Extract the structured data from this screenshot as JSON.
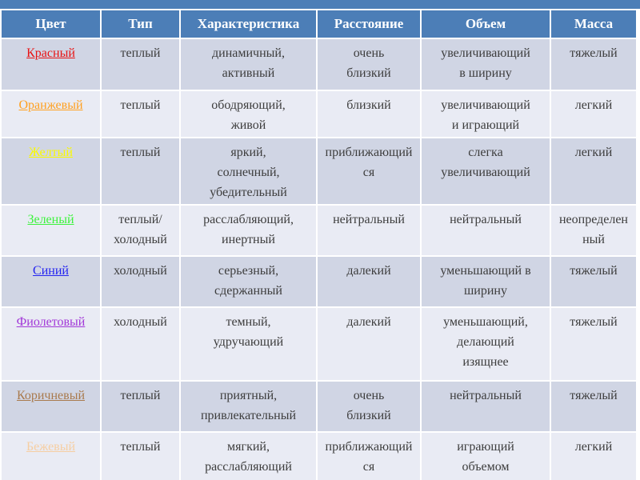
{
  "page": {
    "background_color": "#ffffff",
    "accent_bar_color": "#4c7eb7"
  },
  "table": {
    "header": {
      "bg_color": "#4c7eb7",
      "text_color": "#ffffff",
      "columns": [
        "Цвет",
        "Тип",
        "Характеристика",
        "Расстояние",
        "Объем",
        "Масса"
      ]
    },
    "band_colors": {
      "odd_row": "#d0d5e4",
      "even_row": "#e9ebf4"
    },
    "body_text_color": "#3d3d3d",
    "rows": [
      {
        "color_name": "Красный",
        "color_hex": "#e81313",
        "type": "теплый",
        "characteristic": "динамичный,\nактивный",
        "distance": "очень\nблизкий",
        "volume": "увеличивающий\nв ширину",
        "mass": "тяжелый"
      },
      {
        "color_name": "Оранжевый",
        "color_hex": "#ffa020",
        "type": "теплый",
        "characteristic": "ободряющий,\nживой",
        "distance": "близкий",
        "volume": "увеличивающий\nи играющий",
        "mass": "легкий"
      },
      {
        "color_name": "Желтый",
        "color_hex": "#fafa00",
        "type": "теплый",
        "characteristic": "яркий,\nсолнечный,\nубедительный",
        "distance": "приближающийся",
        "volume": "слегка\nувеличивающий",
        "mass": "легкий"
      },
      {
        "color_name": "Зеленый",
        "color_hex": "#3df33d",
        "type": "теплый/\nхолодный",
        "characteristic": "расслабляющий,\nинертный",
        "distance": "нейтральный",
        "volume": "нейтральный",
        "mass": "неопределенный"
      },
      {
        "color_name": "Синий",
        "color_hex": "#2424f0",
        "type": "холодный",
        "characteristic": "серьезный,\nсдержанный",
        "distance": "далекий",
        "volume": "уменьшающий в\nширину",
        "mass": "тяжелый"
      },
      {
        "color_name": "Фиолетовый",
        "color_hex": "#a238d8",
        "type": "холодный",
        "characteristic": "темный,\nудручающий",
        "distance": "далекий",
        "volume": "уменьшающий,\nделающий\nизящнее",
        "mass": "тяжелый"
      },
      {
        "color_name": "Коричневый",
        "color_hex": "#a97a4d",
        "type": "теплый",
        "characteristic": "приятный,\nпривлекательный",
        "distance": "очень\nблизкий",
        "volume": "нейтральный",
        "mass": "тяжелый"
      },
      {
        "color_name": "Бежевый",
        "color_hex": "#f6cea2",
        "type": "теплый",
        "characteristic": "мягкий,\nрасслабляющий",
        "distance": "приближающийся",
        "volume": "играющий\nобъемом",
        "mass": "легкий"
      }
    ]
  }
}
